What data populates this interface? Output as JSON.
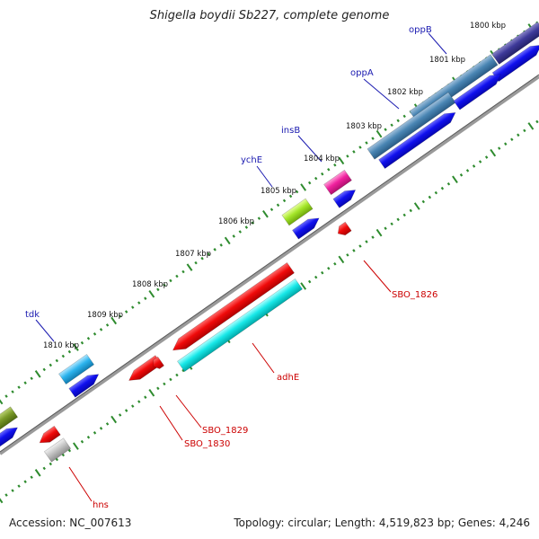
{
  "title": "Shigella boydii Sb227, complete genome",
  "footer": {
    "accession": "Accession: NC_007613",
    "summary": "Topology: circular; Length: 4,519,823 bp; Genes: 4,246"
  },
  "colors": {
    "backbone": "#7a7a7a",
    "tick": "#2e8b2e",
    "forward_label": "#1a1ab0",
    "reverse_label": "#cc0000",
    "cds_blue": "#0f0fe0",
    "cds_red": "#ee0b0b",
    "cds_cyan": "#16e6e6"
  },
  "kbp_labels": [
    {
      "kbp": 1800,
      "text": "1800 kbp"
    },
    {
      "kbp": 1801,
      "text": "1801 kbp"
    },
    {
      "kbp": 1802,
      "text": "1802 kbp"
    },
    {
      "kbp": 1803,
      "text": "1803 kbp"
    },
    {
      "kbp": 1804,
      "text": "1804 kbp"
    },
    {
      "kbp": 1805,
      "text": "1805 kbp"
    },
    {
      "kbp": 1806,
      "text": "1806 kbp"
    },
    {
      "kbp": 1807,
      "text": "1807 kbp"
    },
    {
      "kbp": 1808,
      "text": "1808 kbp"
    },
    {
      "kbp": 1809,
      "text": "1809 kbp"
    },
    {
      "kbp": 1810,
      "text": "1810 kbp"
    }
  ],
  "gene_labels": [
    {
      "name": "oppB",
      "strand": "forward"
    },
    {
      "name": "oppA",
      "strand": "forward"
    },
    {
      "name": "insB",
      "strand": "forward"
    },
    {
      "name": "ychE",
      "strand": "forward"
    },
    {
      "name": "tdk",
      "strand": "forward"
    },
    {
      "name": "SBO_1826",
      "strand": "reverse"
    },
    {
      "name": "adhE",
      "strand": "reverse"
    },
    {
      "name": "SBO_1829",
      "strand": "reverse"
    },
    {
      "name": "SBO_1830",
      "strand": "reverse"
    },
    {
      "name": "hns",
      "strand": "reverse"
    }
  ]
}
